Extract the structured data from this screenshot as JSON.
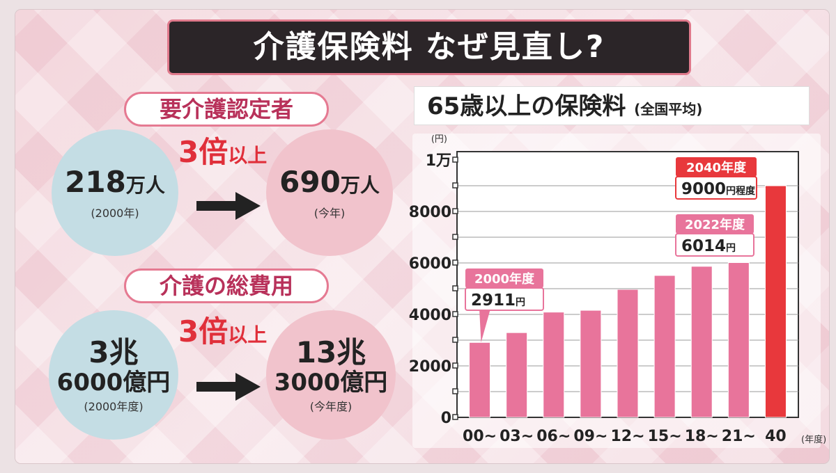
{
  "headline": "介護保険料 なぜ見直し?",
  "left": {
    "certified": {
      "label": "要介護認定者",
      "before": {
        "value": "218",
        "unit": "万人",
        "note": "(2000年)"
      },
      "after": {
        "value": "690",
        "unit": "万人",
        "note": "(今年)"
      },
      "multiplier": {
        "num": "3倍",
        "suffix": "以上"
      }
    },
    "cost": {
      "label": "介護の総費用",
      "before": {
        "line1": "3兆",
        "line2": "6000億円",
        "note": "(2000年度)"
      },
      "after": {
        "line1": "13兆",
        "line2": "3000億円",
        "note": "(今年度)"
      },
      "multiplier": {
        "num": "3倍",
        "suffix": "以上"
      }
    }
  },
  "chart_title": {
    "main": "65歳以上の保険料",
    "sub": "(全国平均)"
  },
  "chart_data": {
    "type": "bar",
    "title": "65歳以上の保険料 (全国平均)",
    "ylabel": "(円)",
    "xlabel": "(年度)",
    "ylim": [
      0,
      10000
    ],
    "yticks": [
      {
        "value": 0,
        "label": "0"
      },
      {
        "value": 2000,
        "label": "2000"
      },
      {
        "value": 4000,
        "label": "4000"
      },
      {
        "value": 6000,
        "label": "6000"
      },
      {
        "value": 8000,
        "label": "8000"
      },
      {
        "value": 10000,
        "label": "1万"
      }
    ],
    "categories": [
      "00~",
      "03~",
      "06~",
      "09~",
      "12~",
      "15~",
      "18~",
      "21~",
      "40"
    ],
    "values": [
      2911,
      3293,
      4090,
      4160,
      4972,
      5514,
      5869,
      6014,
      9000
    ],
    "bar_color": "#e8749b",
    "highlight_color": "#e8383c",
    "callouts": [
      {
        "index": 0,
        "year": "2000年度",
        "amount": "2911",
        "unit": "円"
      },
      {
        "index": 7,
        "year": "2022年度",
        "amount": "6014",
        "unit": "円"
      },
      {
        "index": 8,
        "year": "2040年度",
        "amount": "9000",
        "unit": "円程度"
      }
    ]
  }
}
